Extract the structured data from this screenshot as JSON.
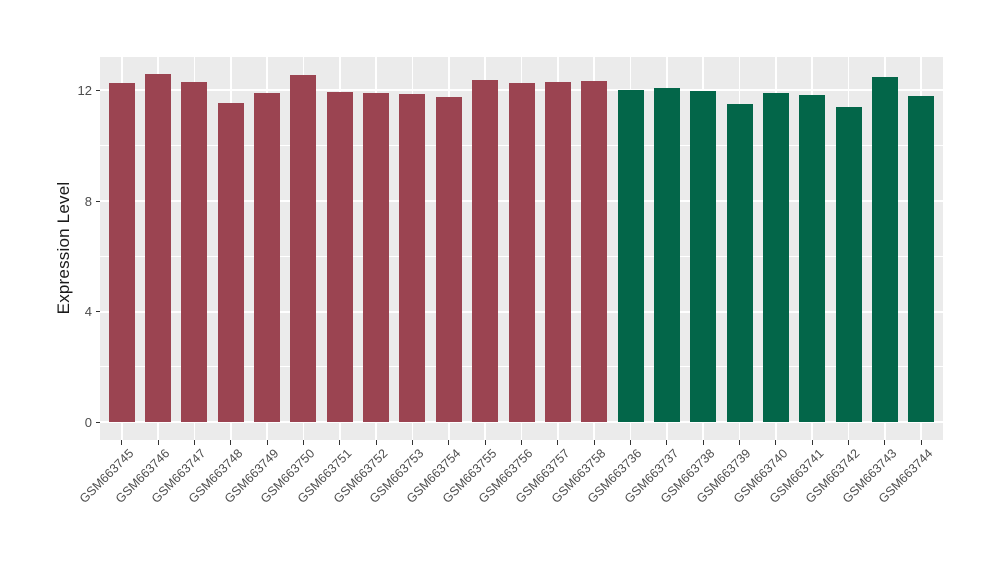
{
  "chart_data": {
    "type": "bar",
    "title": "",
    "xlabel": "",
    "ylabel": "Expression Level",
    "yticks": [
      0,
      4,
      8,
      12
    ],
    "minor_yticks": [
      2,
      6,
      10
    ],
    "ylim": [
      -0.65,
      13.2
    ],
    "grid": "major and minor horizontal white lines plus vertical white lines at each category center, on gray panel",
    "legend_position": "none",
    "categories": [
      "GSM663745",
      "GSM663746",
      "GSM663747",
      "GSM663748",
      "GSM663749",
      "GSM663750",
      "GSM663751",
      "GSM663752",
      "GSM663753",
      "GSM663754",
      "GSM663755",
      "GSM663756",
      "GSM663757",
      "GSM663758",
      "GSM663736",
      "GSM663737",
      "GSM663738",
      "GSM663739",
      "GSM663740",
      "GSM663741",
      "GSM663742",
      "GSM663743",
      "GSM663744"
    ],
    "values": [
      12.28,
      12.6,
      12.32,
      11.55,
      11.91,
      12.55,
      11.96,
      11.9,
      11.88,
      11.77,
      12.38,
      12.27,
      12.3,
      12.35,
      12.03,
      12.09,
      11.98,
      11.51,
      11.91,
      11.85,
      11.4,
      12.5,
      11.81
    ],
    "bar_groups": [
      0,
      0,
      0,
      0,
      0,
      0,
      0,
      0,
      0,
      0,
      0,
      0,
      0,
      0,
      1,
      1,
      1,
      1,
      1,
      1,
      1,
      1,
      1
    ],
    "group_colors": [
      "#9B4451",
      "#036649"
    ],
    "colors": {
      "panel_background": "#EBEBEB",
      "gridline": "#FFFFFF",
      "tick_mark": "#333333",
      "axis_text": "#4D4D4D",
      "axis_title": "#1a1a1a",
      "figure_background": "#FFFFFF"
    }
  }
}
